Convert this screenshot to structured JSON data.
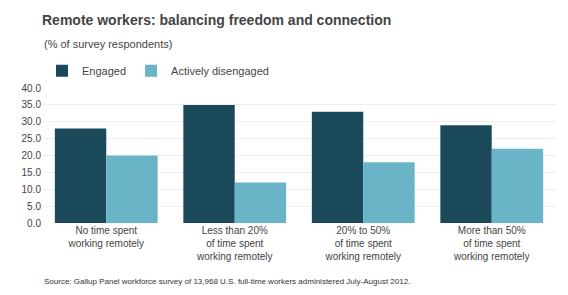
{
  "chart_data": {
    "type": "bar",
    "title": "Remote workers: balancing freedom and connection",
    "subtitle": "(% of survey respondents)",
    "source": "Source: Gallup Panel workforce survey of 13,968 U.S. full-time workers administered July-August 2012.",
    "categories": [
      "No time spent\nworking remotely",
      "Less than 20%\nof time spent\nworking remotely",
      "20% to 50%\nof time spent\nworking remotely",
      "More than 50%\nof time spent\nworking remotely"
    ],
    "series": [
      {
        "name": "Engaged",
        "color": "#1a4a5a",
        "values": [
          28.0,
          35.0,
          33.0,
          29.0
        ]
      },
      {
        "name": "Actively disengaged",
        "color": "#6ab4c8",
        "values": [
          20.0,
          12.0,
          18.0,
          22.0
        ]
      }
    ],
    "ylim": [
      0,
      40
    ],
    "yticks": [
      {
        "value": 0,
        "label": "0.0"
      },
      {
        "value": 5,
        "label": "5.0"
      },
      {
        "value": 10,
        "label": "10.0"
      },
      {
        "value": 15,
        "label": "15.0"
      },
      {
        "value": 20,
        "label": "20.0"
      },
      {
        "value": 25,
        "label": "25.0"
      },
      {
        "value": 30,
        "label": "30.0"
      },
      {
        "value": 35,
        "label": "35.0"
      },
      {
        "value": 40,
        "label": "40.0"
      }
    ],
    "grid": true,
    "legend": "upper left"
  }
}
